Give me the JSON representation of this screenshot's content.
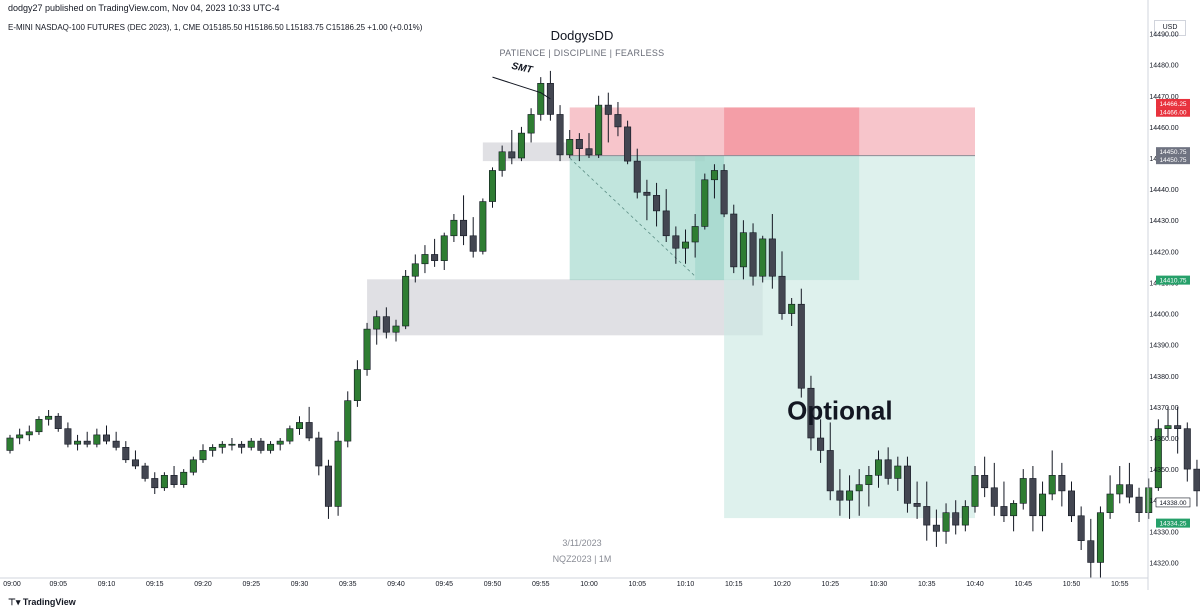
{
  "header": {
    "published": "dodgy27 published on TradingView.com, Nov 04, 2023 10:33 UTC-4",
    "symbol": "E-MINI NASDAQ-100 FUTURES (DEC 2023), 1, CME  O15185.50  H15186.50  L15183.75  C15186.25  +1.00 (+0.01%)",
    "currency": "USD"
  },
  "branding": {
    "title": "DodgysDD",
    "subtitle": "PATIENCE   |   DISCIPLINE   |   FEARLESS"
  },
  "watermark": {
    "date": "3/11/2023",
    "ticker": "NQZ2023  |  1M"
  },
  "footer": {
    "logo": "TradingView"
  },
  "colors": {
    "bull": "#2e7d32",
    "bear": "#434651",
    "stop_zone": "#f7c5cb",
    "target_zone": "#cde9e3",
    "price_badge_red": "#e8323d",
    "price_badge_green": "#26a06a",
    "price_badge_grey": "#6f7381"
  },
  "chart_data": {
    "type": "candlestick",
    "title": "",
    "xlabel": "",
    "ylabel": "",
    "ylim": [
      14315,
      14495
    ],
    "y_ticks": [
      14490.0,
      14480.0,
      14470.0,
      14460.0,
      14450.0,
      14440.0,
      14430.0,
      14420.0,
      14410.0,
      14400.0,
      14390.0,
      14380.0,
      14370.0,
      14360.0,
      14350.0,
      14340.0,
      14330.0,
      14320.0
    ],
    "x_ticks": [
      "09:00",
      "09:05",
      "09:10",
      "09:15",
      "09:20",
      "09:25",
      "09:30",
      "09:35",
      "09:40",
      "09:45",
      "09:50",
      "09:55",
      "10:00",
      "10:05",
      "10:10",
      "10:15",
      "10:20",
      "10:25",
      "10:30",
      "10:35",
      "10:40",
      "10:45",
      "10:50",
      "10:55"
    ],
    "start_time": "09:00",
    "candles": [
      [
        14356,
        14361,
        14355,
        14360
      ],
      [
        14360,
        14363,
        14358,
        14361
      ],
      [
        14361,
        14364,
        14359,
        14362
      ],
      [
        14362,
        14367,
        14361,
        14366
      ],
      [
        14366,
        14369,
        14364,
        14367
      ],
      [
        14367,
        14368,
        14362,
        14363
      ],
      [
        14363,
        14365,
        14357,
        14358
      ],
      [
        14358,
        14361,
        14356,
        14359
      ],
      [
        14359,
        14362,
        14357,
        14358
      ],
      [
        14358,
        14363,
        14357,
        14361
      ],
      [
        14361,
        14364,
        14358,
        14359
      ],
      [
        14359,
        14362,
        14356,
        14357
      ],
      [
        14357,
        14359,
        14352,
        14353
      ],
      [
        14353,
        14356,
        14350,
        14351
      ],
      [
        14351,
        14352,
        14346,
        14347
      ],
      [
        14347,
        14349,
        14342,
        14344
      ],
      [
        14344,
        14349,
        14343,
        14348
      ],
      [
        14348,
        14351,
        14344,
        14345
      ],
      [
        14345,
        14350,
        14344,
        14349
      ],
      [
        14349,
        14354,
        14348,
        14353
      ],
      [
        14353,
        14358,
        14352,
        14356
      ],
      [
        14356,
        14358,
        14354,
        14357
      ],
      [
        14357,
        14359,
        14355,
        14358
      ],
      [
        14358,
        14360,
        14356,
        14358
      ],
      [
        14358,
        14359,
        14355,
        14357
      ],
      [
        14357,
        14360,
        14356,
        14359
      ],
      [
        14359,
        14360,
        14355,
        14356
      ],
      [
        14356,
        14359,
        14355,
        14358
      ],
      [
        14358,
        14360,
        14356,
        14359
      ],
      [
        14359,
        14364,
        14358,
        14363
      ],
      [
        14363,
        14367,
        14361,
        14365
      ],
      [
        14365,
        14370,
        14359,
        14360
      ],
      [
        14360,
        14362,
        14348,
        14351
      ],
      [
        14351,
        14353,
        14334,
        14338
      ],
      [
        14338,
        14362,
        14335,
        14359
      ],
      [
        14359,
        14375,
        14357,
        14372
      ],
      [
        14372,
        14385,
        14370,
        14382
      ],
      [
        14382,
        14397,
        14380,
        14395
      ],
      [
        14395,
        14401,
        14390,
        14399
      ],
      [
        14399,
        14402,
        14392,
        14394
      ],
      [
        14394,
        14398,
        14391,
        14396
      ],
      [
        14396,
        14414,
        14395,
        14412
      ],
      [
        14412,
        14419,
        14410,
        14416
      ],
      [
        14416,
        14422,
        14413,
        14419
      ],
      [
        14419,
        14424,
        14415,
        14417
      ],
      [
        14417,
        14426,
        14414,
        14425
      ],
      [
        14425,
        14432,
        14423,
        14430
      ],
      [
        14430,
        14438,
        14422,
        14425
      ],
      [
        14425,
        14431,
        14418,
        14420
      ],
      [
        14420,
        14437,
        14419,
        14436
      ],
      [
        14436,
        14447,
        14434,
        14446
      ],
      [
        14446,
        14454,
        14444,
        14452
      ],
      [
        14452,
        14459,
        14448,
        14450
      ],
      [
        14450,
        14460,
        14449,
        14458
      ],
      [
        14458,
        14466,
        14455,
        14464
      ],
      [
        14464,
        14476,
        14462,
        14474
      ],
      [
        14474,
        14478,
        14462,
        14464
      ],
      [
        14464,
        14467,
        14449,
        14451
      ],
      [
        14451,
        14459,
        14450,
        14456
      ],
      [
        14456,
        14458,
        14449,
        14453
      ],
      [
        14453,
        14458,
        14450,
        14451
      ],
      [
        14451,
        14470,
        14450,
        14467
      ],
      [
        14467,
        14471,
        14455,
        14464
      ],
      [
        14464,
        14468,
        14457,
        14460
      ],
      [
        14460,
        14462,
        14448,
        14449
      ],
      [
        14449,
        14453,
        14437,
        14439
      ],
      [
        14439,
        14443,
        14430,
        14438
      ],
      [
        14438,
        14442,
        14428,
        14433
      ],
      [
        14433,
        14440,
        14423,
        14425
      ],
      [
        14425,
        14428,
        14416,
        14421
      ],
      [
        14421,
        14427,
        14416,
        14423
      ],
      [
        14423,
        14432,
        14418,
        14428
      ],
      [
        14428,
        14445,
        14427,
        14443
      ],
      [
        14443,
        14448,
        14437,
        14446
      ],
      [
        14446,
        14448,
        14431,
        14432
      ],
      [
        14432,
        14435,
        14413,
        14415
      ],
      [
        14415,
        14430,
        14411,
        14426
      ],
      [
        14426,
        14429,
        14409,
        14412
      ],
      [
        14412,
        14425,
        14410,
        14424
      ],
      [
        14424,
        14432,
        14408,
        14412
      ],
      [
        14412,
        14420,
        14398,
        14400
      ],
      [
        14400,
        14405,
        14396,
        14403
      ],
      [
        14403,
        14408,
        14373,
        14376
      ],
      [
        14376,
        14380,
        14356,
        14360
      ],
      [
        14360,
        14366,
        14352,
        14356
      ],
      [
        14356,
        14365,
        14340,
        14343
      ],
      [
        14343,
        14350,
        14335,
        14340
      ],
      [
        14340,
        14348,
        14334,
        14343
      ],
      [
        14343,
        14350,
        14335,
        14345
      ],
      [
        14345,
        14351,
        14338,
        14348
      ],
      [
        14348,
        14356,
        14344,
        14353
      ],
      [
        14353,
        14357,
        14345,
        14347
      ],
      [
        14347,
        14354,
        14343,
        14351
      ],
      [
        14351,
        14354,
        14336,
        14339
      ],
      [
        14339,
        14346,
        14334,
        14338
      ],
      [
        14338,
        14346,
        14327,
        14332
      ],
      [
        14332,
        14337,
        14325,
        14330
      ],
      [
        14330,
        14339,
        14326,
        14336
      ],
      [
        14336,
        14340,
        14329,
        14332
      ],
      [
        14332,
        14340,
        14330,
        14338
      ],
      [
        14338,
        14351,
        14336,
        14348
      ],
      [
        14348,
        14354,
        14341,
        14344
      ],
      [
        14344,
        14352,
        14335,
        14338
      ],
      [
        14338,
        14346,
        14333,
        14335
      ],
      [
        14335,
        14340,
        14330,
        14339
      ],
      [
        14339,
        14350,
        14337,
        14347
      ],
      [
        14347,
        14351,
        14330,
        14335
      ],
      [
        14335,
        14346,
        14330,
        14342
      ],
      [
        14342,
        14356,
        14340,
        14348
      ],
      [
        14348,
        14352,
        14338,
        14343
      ],
      [
        14343,
        14346,
        14333,
        14335
      ],
      [
        14335,
        14338,
        14324,
        14327
      ],
      [
        14327,
        14334,
        14315,
        14320
      ],
      [
        14320,
        14338,
        14315,
        14336
      ],
      [
        14336,
        14348,
        14334,
        14342
      ],
      [
        14342,
        14351,
        14339,
        14345
      ],
      [
        14345,
        14352,
        14339,
        14341
      ],
      [
        14341,
        14344,
        14333,
        14336
      ],
      [
        14336,
        14347,
        14334,
        14344
      ],
      [
        14344,
        14366,
        14343,
        14363
      ],
      [
        14363,
        14370,
        14360,
        14364
      ],
      [
        14364,
        14370,
        14355,
        14363
      ],
      [
        14363,
        14365,
        14346,
        14350
      ],
      [
        14350,
        14353,
        14338,
        14343
      ],
      [
        14343,
        14349,
        14332,
        14339
      ],
      [
        14339,
        14342,
        14334,
        14338
      ]
    ],
    "current_price": "14338.00",
    "price_labels": [
      {
        "label": "14466.25",
        "color": "#e8323d"
      },
      {
        "label": "14466.00",
        "color": "#e8323d"
      },
      {
        "label": "14450.75",
        "color": "#6f7381"
      },
      {
        "label": "14450.75",
        "color": "#6f7381"
      },
      {
        "label": "14410.75",
        "color": "#26a06a"
      },
      {
        "label": "14338.00",
        "color": "#ffffff"
      },
      {
        "label": "14334.25",
        "color": "#26a06a"
      }
    ],
    "zones": [
      {
        "kind": "gray",
        "t0": "09:49",
        "t1": "10:12",
        "y0": 14449,
        "y1": 14455
      },
      {
        "kind": "gray",
        "t0": "09:37",
        "t1": "10:18",
        "y0": 14393,
        "y1": 14411
      },
      {
        "kind": "stop",
        "t0": "09:58",
        "t1": "10:40",
        "y0": 14450.75,
        "y1": 14466.25
      },
      {
        "kind": "stop-dark",
        "t0": "10:14",
        "t1": "10:28",
        "y0": 14450.75,
        "y1": 14466.25
      },
      {
        "kind": "target-light",
        "t0": "10:11",
        "t1": "10:14",
        "y0": 14410.75,
        "y1": 14450.75
      },
      {
        "kind": "target",
        "t0": "09:58",
        "t1": "10:28",
        "y0": 14410.75,
        "y1": 14450.75
      },
      {
        "kind": "target-optional",
        "t0": "10:14",
        "t1": "10:40",
        "y0": 14334.25,
        "y1": 14450.75
      }
    ],
    "annotations": [
      {
        "text": "SMT",
        "t": "09:53",
        "y": 14478
      },
      {
        "text": "Optional",
        "t": "10:26",
        "y": 14366
      }
    ]
  }
}
